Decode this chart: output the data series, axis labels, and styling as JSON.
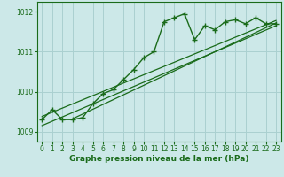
{
  "x": [
    0,
    1,
    2,
    3,
    4,
    5,
    6,
    7,
    8,
    9,
    10,
    11,
    12,
    13,
    14,
    15,
    16,
    17,
    18,
    19,
    20,
    21,
    22,
    23
  ],
  "y_main": [
    1009.3,
    1009.55,
    1009.3,
    1009.3,
    1009.35,
    1009.7,
    1009.95,
    1010.05,
    1010.3,
    1010.55,
    1010.85,
    1011.0,
    1011.75,
    1011.85,
    1011.95,
    1011.3,
    1011.65,
    1011.55,
    1011.75,
    1011.8,
    1011.7,
    1011.85,
    1011.7,
    1011.7
  ],
  "trend1_x": [
    0,
    23
  ],
  "trend1_y": [
    1009.15,
    1011.65
  ],
  "trend2_x": [
    0,
    23
  ],
  "trend2_y": [
    1009.38,
    1011.78
  ],
  "trend3_x": [
    3,
    23
  ],
  "trend3_y": [
    1009.32,
    1011.72
  ],
  "ylim": [
    1008.75,
    1012.25
  ],
  "xlim": [
    -0.5,
    23.5
  ],
  "yticks": [
    1009,
    1010,
    1011,
    1012
  ],
  "xticks": [
    0,
    1,
    2,
    3,
    4,
    5,
    6,
    7,
    8,
    9,
    10,
    11,
    12,
    13,
    14,
    15,
    16,
    17,
    18,
    19,
    20,
    21,
    22,
    23
  ],
  "line_color": "#1a6b1a",
  "bg_color": "#cce8e8",
  "grid_color": "#aad0d0",
  "xlabel": "Graphe pression niveau de la mer (hPa)",
  "marker": "+",
  "marker_size": 4,
  "marker_edge_width": 1.0,
  "linewidth": 1.0,
  "trend_linewidth": 0.9,
  "tick_fontsize": 5.5,
  "xlabel_fontsize": 6.5
}
